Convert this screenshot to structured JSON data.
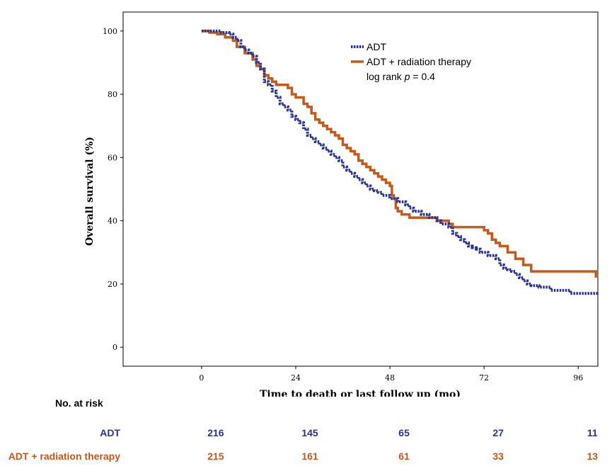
{
  "chart_data": {
    "type": "line",
    "step": true,
    "xlabel": "Time to death or last follow up (mo)",
    "ylabel": "Overall survival (%)",
    "xlim": [
      -20,
      101
    ],
    "ylim": [
      -6,
      106
    ],
    "xticks": [
      0,
      24,
      48,
      72,
      96
    ],
    "yticks": [
      0,
      20,
      40,
      60,
      80,
      100
    ],
    "grid": false,
    "legend_position": "top-right",
    "annotation": "log rank p = 0.4",
    "series": [
      {
        "name": "ADT",
        "color": "#28348f",
        "style": "dotted",
        "points": [
          [
            0,
            100
          ],
          [
            5,
            99.5
          ],
          [
            7,
            99
          ],
          [
            8,
            98
          ],
          [
            9,
            97
          ],
          [
            10,
            95
          ],
          [
            11,
            94
          ],
          [
            12,
            93
          ],
          [
            13,
            92
          ],
          [
            14,
            90
          ],
          [
            15,
            88
          ],
          [
            16,
            84
          ],
          [
            17,
            83
          ],
          [
            18,
            81
          ],
          [
            19,
            79
          ],
          [
            20,
            77
          ],
          [
            21,
            76
          ],
          [
            22,
            75
          ],
          [
            23,
            73
          ],
          [
            24,
            72
          ],
          [
            25,
            71
          ],
          [
            26,
            69
          ],
          [
            27,
            67
          ],
          [
            28,
            66
          ],
          [
            29,
            65
          ],
          [
            30,
            64
          ],
          [
            31,
            63
          ],
          [
            32,
            62
          ],
          [
            33,
            61
          ],
          [
            34,
            60
          ],
          [
            35,
            59
          ],
          [
            36,
            57
          ],
          [
            37,
            56
          ],
          [
            38,
            55
          ],
          [
            39,
            54
          ],
          [
            40,
            53
          ],
          [
            41,
            52
          ],
          [
            42,
            51
          ],
          [
            43,
            50
          ],
          [
            44,
            49.5
          ],
          [
            45,
            49
          ],
          [
            46,
            48
          ],
          [
            48,
            47
          ],
          [
            50,
            46
          ],
          [
            52,
            45
          ],
          [
            53,
            44
          ],
          [
            54,
            43
          ],
          [
            56,
            42
          ],
          [
            58,
            41
          ],
          [
            60,
            40
          ],
          [
            61,
            39
          ],
          [
            63,
            38
          ],
          [
            64,
            36
          ],
          [
            65,
            35
          ],
          [
            66,
            34
          ],
          [
            67,
            33
          ],
          [
            68,
            32
          ],
          [
            69,
            31.5
          ],
          [
            70,
            31
          ],
          [
            71,
            30
          ],
          [
            73,
            29
          ],
          [
            75,
            28
          ],
          [
            76,
            26
          ],
          [
            77,
            25
          ],
          [
            78,
            24.5
          ],
          [
            79,
            24
          ],
          [
            80,
            23
          ],
          [
            81,
            22
          ],
          [
            82,
            21
          ],
          [
            83,
            20
          ],
          [
            84,
            19.5
          ],
          [
            86,
            19
          ],
          [
            89,
            18
          ],
          [
            94,
            17
          ],
          [
            101,
            17
          ]
        ]
      },
      {
        "name": "ADT + radiation therapy",
        "color": "#c55a1a",
        "style": "solid",
        "points": [
          [
            0,
            100
          ],
          [
            2,
            99.5
          ],
          [
            4,
            99
          ],
          [
            6,
            98
          ],
          [
            8,
            97
          ],
          [
            9,
            95
          ],
          [
            11,
            93
          ],
          [
            13,
            91
          ],
          [
            14,
            89
          ],
          [
            15,
            88
          ],
          [
            16,
            86
          ],
          [
            17,
            85
          ],
          [
            18,
            84
          ],
          [
            19,
            83
          ],
          [
            22,
            82
          ],
          [
            23,
            80
          ],
          [
            24,
            79
          ],
          [
            26,
            77
          ],
          [
            27,
            76
          ],
          [
            28,
            74
          ],
          [
            29,
            72
          ],
          [
            30,
            71
          ],
          [
            31,
            70
          ],
          [
            32,
            69
          ],
          [
            33,
            68
          ],
          [
            34,
            67
          ],
          [
            35,
            66
          ],
          [
            36,
            64
          ],
          [
            37,
            63
          ],
          [
            38,
            62
          ],
          [
            39,
            61
          ],
          [
            40,
            59
          ],
          [
            41,
            58
          ],
          [
            42,
            57
          ],
          [
            43,
            56
          ],
          [
            44,
            55
          ],
          [
            45,
            54
          ],
          [
            46,
            53
          ],
          [
            47,
            52
          ],
          [
            48,
            51
          ],
          [
            48.5,
            48
          ],
          [
            49,
            47
          ],
          [
            49.5,
            44
          ],
          [
            50,
            43
          ],
          [
            51,
            42
          ],
          [
            53,
            41
          ],
          [
            60,
            40
          ],
          [
            63,
            39
          ],
          [
            64,
            38
          ],
          [
            72,
            37
          ],
          [
            73,
            36
          ],
          [
            74,
            34
          ],
          [
            75,
            33
          ],
          [
            76,
            32
          ],
          [
            78,
            30
          ],
          [
            80,
            28
          ],
          [
            82,
            26
          ],
          [
            84,
            24
          ],
          [
            90,
            24
          ],
          [
            99,
            24
          ],
          [
            100.5,
            22
          ]
        ]
      }
    ],
    "risk_table": {
      "title": "No. at risk",
      "times": [
        0,
        24,
        48,
        72,
        96
      ],
      "rows": [
        {
          "label": "ADT",
          "color": "#28348f",
          "values": [
            "216",
            "145",
            "65",
            "27",
            "11"
          ]
        },
        {
          "label": "ADT + radiation therapy",
          "color": "#c55a1a",
          "values": [
            "215",
            "161",
            "61",
            "33",
            "13"
          ]
        }
      ]
    }
  },
  "legend": {
    "adt": "ADT",
    "rt": "ADT + radiation therapy",
    "logrank_prefix": "log rank ",
    "logrank_p": "p",
    "logrank_value": " = 0.4"
  }
}
